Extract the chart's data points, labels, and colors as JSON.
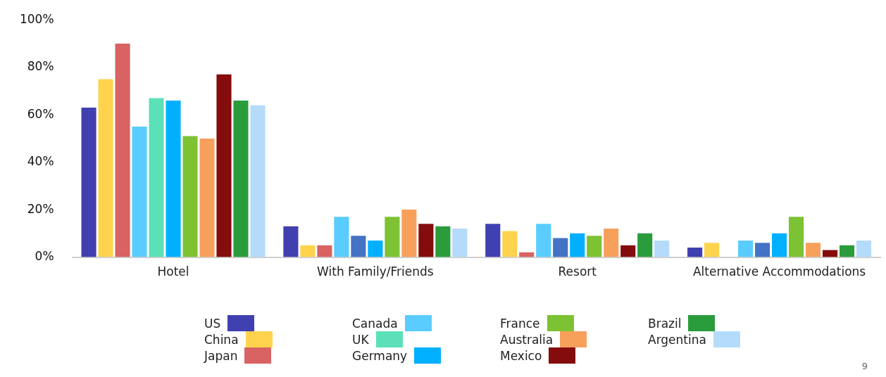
{
  "chart_data": {
    "type": "bar",
    "categories": [
      "Hotel",
      "With Family/Friends",
      "Resort",
      "Alternative Accommodations"
    ],
    "series": [
      {
        "name": "US",
        "color": "#4040b0",
        "values": [
          63,
          13,
          14,
          4
        ]
      },
      {
        "name": "China",
        "color": "#ffd34d",
        "values": [
          75,
          5,
          11,
          6
        ]
      },
      {
        "name": "Japan",
        "color": "#d96262",
        "values": [
          90,
          5,
          2,
          0
        ]
      },
      {
        "name": "Canada",
        "color": "#5accff",
        "values": [
          55,
          17,
          14,
          7
        ]
      },
      {
        "name": "UK",
        "color": "#5ce0b8",
        "colors": [
          "#5ce0b8",
          "#4472c4",
          "#4472c4",
          "#4472c4"
        ],
        "values": [
          67,
          9,
          8,
          6
        ]
      },
      {
        "name": "Germany",
        "color": "#00b0ff",
        "values": [
          66,
          7,
          10,
          10
        ]
      },
      {
        "name": "France",
        "color": "#7cc232",
        "values": [
          51,
          17,
          9,
          17
        ]
      },
      {
        "name": "Australia",
        "color": "#f7a05c",
        "values": [
          50,
          20,
          12,
          6
        ]
      },
      {
        "name": "Mexico",
        "color": "#840c0c",
        "values": [
          77,
          14,
          5,
          3
        ]
      },
      {
        "name": "Brazil",
        "color": "#2a9c3c",
        "values": [
          66,
          13,
          10,
          5
        ]
      },
      {
        "name": "Argentina",
        "color": "#b5dbfa",
        "values": [
          64,
          12,
          7,
          7
        ]
      }
    ],
    "ylim": [
      0,
      100
    ],
    "yticks": [
      {
        "value": 0,
        "label": "0%"
      },
      {
        "value": 20,
        "label": "20%"
      },
      {
        "value": 40,
        "label": "40%"
      },
      {
        "value": 60,
        "label": "60%"
      },
      {
        "value": 80,
        "label": "80%"
      },
      {
        "value": 100,
        "label": "100%"
      }
    ],
    "legend": "bottom",
    "annotations": [
      "9"
    ]
  }
}
